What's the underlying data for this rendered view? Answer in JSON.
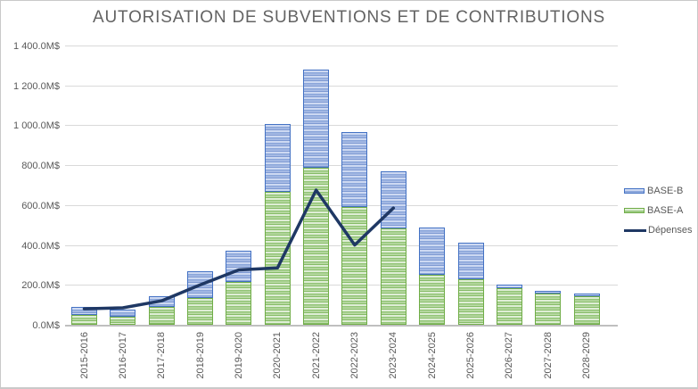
{
  "chart_data": {
    "type": "bar",
    "subtype": "stacked-bars-with-line-overlay",
    "title": "AUTORISATION DE SUBVENTIONS ET DE CONTRIBUTIONS",
    "categories": [
      "2015-2016",
      "2016-2017",
      "2017-2018",
      "2018-2019",
      "2019-2020",
      "2020-2021",
      "2021-2022",
      "2022-2023",
      "2023-2024",
      "2024-2025",
      "2025-2026",
      "2026-2027",
      "2027-2028",
      "2028-2029"
    ],
    "series": [
      {
        "name": "BASE-A",
        "render": "bar",
        "stack": 1,
        "color": "#70AD47",
        "values": [
          50,
          40,
          90,
          135,
          215,
          665,
          785,
          590,
          485,
          250,
          230,
          185,
          155,
          145
        ]
      },
      {
        "name": "BASE-B",
        "render": "bar",
        "stack": 2,
        "color": "#4472C4",
        "values": [
          40,
          35,
          55,
          135,
          155,
          340,
          490,
          375,
          285,
          235,
          185,
          20,
          15,
          15
        ]
      },
      {
        "name": "Dépenses",
        "render": "line",
        "color": "#1F3864",
        "values": [
          80,
          85,
          120,
          200,
          275,
          285,
          675,
          400,
          585,
          null,
          null,
          null,
          null,
          null
        ]
      }
    ],
    "stacked_totals": [
      90,
      75,
      145,
      270,
      370,
      1005,
      1275,
      965,
      770,
      485,
      415,
      205,
      170,
      160
    ],
    "xlabel": "",
    "ylabel": "",
    "unit": "M$",
    "ylim": [
      0,
      1400
    ],
    "y_tick_step": 200,
    "y_ticks_top_to_bottom": [
      "1 400.0M$",
      "1 200.0M$",
      "1 000.0M$",
      "800.0M$",
      "600.0M$",
      "400.0M$",
      "200.0M$",
      "0.0M$"
    ],
    "grid": true,
    "legend_position": "right"
  },
  "legend": {
    "items": [
      {
        "label": "BASE-B"
      },
      {
        "label": "BASE-A"
      },
      {
        "label": "Dépenses"
      }
    ]
  },
  "colors": {
    "base_b": "#4472C4",
    "base_a": "#70AD47",
    "depenses_line": "#1F3864",
    "title_text": "#636363",
    "axis_text": "#595959",
    "gridline": "#D9D9D9",
    "axis_line": "#BFBFBF",
    "frame_border": "#C9C9C9",
    "background": "#FFFFFF"
  }
}
